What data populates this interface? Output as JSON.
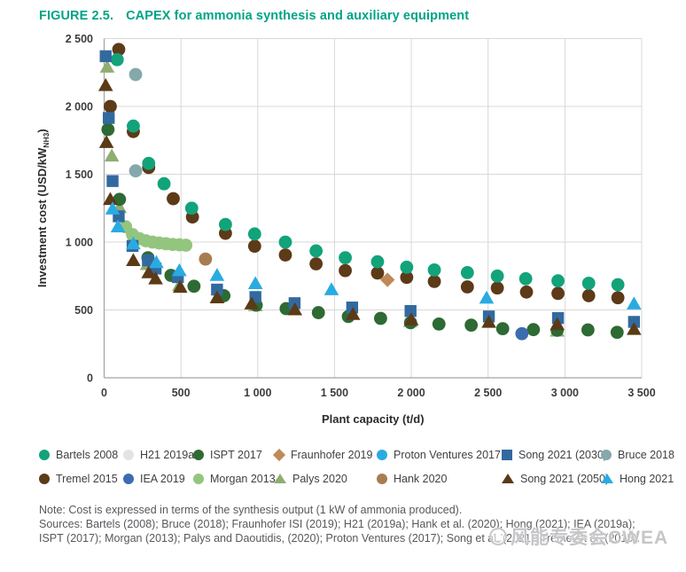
{
  "title": {
    "number": "FIGURE 2.5.",
    "text": "CAPEX for ammonia synthesis and auxiliary equipment",
    "color": "#00a485"
  },
  "chart_data": {
    "type": "scatter",
    "title": "CAPEX for ammonia synthesis and auxiliary equipment",
    "xlabel": "Plant capacity (t/d)",
    "ylabel_prefix": "Investment cost (USD/kW",
    "ylabel_sub": "NH3",
    "ylabel_suffix": ")",
    "xlim": [
      0,
      3500
    ],
    "ylim": [
      0,
      2500
    ],
    "xtick_values": [
      0,
      500,
      1000,
      1500,
      2000,
      2500,
      3000,
      3500
    ],
    "xtick_labels": [
      "0",
      "500",
      "1 000",
      "1 500",
      "2 000",
      "2 500",
      "3 000",
      "3 500"
    ],
    "ytick_values": [
      0,
      500,
      1000,
      1500,
      2000,
      2500
    ],
    "ytick_labels": [
      "0",
      "500",
      "1 000",
      "1 500",
      "2 000",
      "2 500"
    ],
    "grid": true,
    "legend_position": "bottom",
    "grid_color": "#d8d8d8",
    "axis_color": "#a3a3a3",
    "tick_label_color": "#3d3d3f",
    "axis_title_color": "#2b2b2d",
    "series": [
      {
        "name": "Bartels 2008",
        "marker": "circle",
        "color": "#12a37b",
        "points": [
          [
            85,
            2345
          ],
          [
            190,
            1855
          ],
          [
            290,
            1580
          ],
          [
            390,
            1430
          ],
          [
            570,
            1250
          ],
          [
            790,
            1130
          ],
          [
            980,
            1060
          ],
          [
            1180,
            1000
          ],
          [
            1380,
            935
          ],
          [
            1570,
            885
          ],
          [
            1780,
            855
          ],
          [
            1970,
            815
          ],
          [
            2150,
            795
          ],
          [
            2365,
            775
          ],
          [
            2560,
            750
          ],
          [
            2745,
            730
          ],
          [
            2955,
            715
          ],
          [
            3155,
            697
          ],
          [
            3345,
            686
          ]
        ]
      },
      {
        "name": "H21 2019a",
        "marker": "circle",
        "color": "#e3e3e1",
        "points": []
      },
      {
        "name": "ISPT 2017",
        "marker": "circle",
        "color": "#2e6a33",
        "points": [
          [
            25,
            1830
          ],
          [
            100,
            1315
          ],
          [
            285,
            885
          ],
          [
            435,
            755
          ],
          [
            585,
            675
          ],
          [
            780,
            605
          ],
          [
            990,
            535
          ],
          [
            1185,
            510
          ],
          [
            1395,
            480
          ],
          [
            1590,
            452
          ],
          [
            1800,
            438
          ],
          [
            1995,
            406
          ],
          [
            2180,
            396
          ],
          [
            2390,
            388
          ],
          [
            2595,
            362
          ],
          [
            2795,
            355
          ],
          [
            2950,
            350
          ],
          [
            3150,
            353
          ],
          [
            3340,
            335
          ]
        ]
      },
      {
        "name": "Fraunhofer 2019",
        "marker": "diamond",
        "color": "#bf8a57",
        "points": [
          [
            1845,
            722
          ]
        ]
      },
      {
        "name": "Proton Ventures 2017",
        "marker": "circle",
        "color": "#29abe2",
        "points": []
      },
      {
        "name": "Song 2021 (2030)",
        "marker": "square",
        "color": "#32699f",
        "points": [
          [
            10,
            2370
          ],
          [
            30,
            1915
          ],
          [
            55,
            1450
          ],
          [
            95,
            1190
          ],
          [
            185,
            972
          ],
          [
            285,
            865
          ],
          [
            335,
            805
          ],
          [
            480,
            742
          ],
          [
            735,
            650
          ],
          [
            985,
            595
          ],
          [
            1240,
            550
          ],
          [
            1615,
            518
          ],
          [
            1995,
            492
          ],
          [
            2505,
            452
          ],
          [
            2955,
            440
          ],
          [
            3450,
            412
          ]
        ]
      },
      {
        "name": "Bruce 2018",
        "marker": "circle",
        "color": "#85a8ab",
        "points": [
          [
            205,
            2235
          ],
          [
            205,
            1525
          ]
        ]
      },
      {
        "name": "Tremel 2015",
        "marker": "circle",
        "color": "#5d3a18",
        "points": [
          [
            95,
            2420
          ],
          [
            40,
            2000
          ],
          [
            190,
            1815
          ],
          [
            290,
            1550
          ],
          [
            450,
            1320
          ],
          [
            575,
            1185
          ],
          [
            790,
            1065
          ],
          [
            980,
            970
          ],
          [
            1180,
            905
          ],
          [
            1380,
            840
          ],
          [
            1570,
            790
          ],
          [
            1780,
            772
          ],
          [
            1970,
            740
          ],
          [
            2150,
            710
          ],
          [
            2365,
            670
          ],
          [
            2560,
            662
          ],
          [
            2750,
            632
          ],
          [
            2955,
            622
          ],
          [
            3155,
            605
          ],
          [
            3345,
            590
          ]
        ]
      },
      {
        "name": "IEA 2019",
        "marker": "circle",
        "color": "#3c6cb0",
        "points": [
          [
            2720,
            325
          ]
        ]
      },
      {
        "name": "Morgan 2013",
        "marker": "circle",
        "color": "#94c57e",
        "points": [
          [
            140,
            1113
          ],
          [
            185,
            1055
          ],
          [
            230,
            1025
          ],
          [
            272,
            1010
          ],
          [
            315,
            1000
          ],
          [
            358,
            993
          ],
          [
            402,
            988
          ],
          [
            446,
            983
          ],
          [
            490,
            980
          ],
          [
            532,
            977
          ]
        ]
      },
      {
        "name": "Palys 2020",
        "marker": "triangle",
        "color": "#8fae70",
        "points": [
          [
            20,
            2290
          ],
          [
            50,
            1635
          ],
          [
            100,
            1255
          ],
          [
            280,
            835
          ],
          [
            490,
            682
          ],
          [
            985,
            532
          ],
          [
            1995,
            415
          ],
          [
            2950,
            345
          ]
        ]
      },
      {
        "name": "Hank 2020",
        "marker": "circle",
        "color": "#a87c51",
        "points": [
          [
            660,
            875
          ]
        ]
      },
      {
        "name": "Song 2021 (2050)",
        "marker": "triangle",
        "color": "#5b3a16",
        "points": [
          [
            10,
            2155
          ],
          [
            15,
            1735
          ],
          [
            40,
            1315
          ],
          [
            190,
            865
          ],
          [
            290,
            775
          ],
          [
            335,
            730
          ],
          [
            495,
            668
          ],
          [
            735,
            590
          ],
          [
            960,
            545
          ],
          [
            1242,
            502
          ],
          [
            1620,
            468
          ],
          [
            2000,
            428
          ],
          [
            2505,
            410
          ],
          [
            2950,
            393
          ],
          [
            3450,
            357
          ]
        ]
      },
      {
        "name": "Hong 2021",
        "marker": "triangle",
        "color": "#29abe2",
        "points": [
          [
            55,
            1245
          ],
          [
            90,
            1113
          ],
          [
            190,
            988
          ],
          [
            340,
            850
          ],
          [
            490,
            790
          ],
          [
            735,
            755
          ],
          [
            985,
            695
          ],
          [
            1480,
            650
          ],
          [
            2490,
            588
          ],
          [
            3450,
            545
          ]
        ]
      }
    ],
    "draw_order": [
      1,
      4,
      6,
      11,
      3,
      9,
      10,
      7,
      0,
      2,
      8,
      5,
      12,
      13
    ]
  },
  "notes": {
    "note": "Note: Cost is expressed in terms of the synthesis output (1 kW of ammonia produced).",
    "sources_line1": "Sources: Bartels (2008); Bruce (2018); Fraunhofer ISI (2019); H21 (2019a); Hank et al. (2020); Hong (2021); IEA (2019a);",
    "sources_line2": "ISPT (2017); Morgan (2013); Palys and Daoutidis, (2020); Proton Ventures (2017); Song et al. (2021); Tremel et al. (2015)."
  },
  "watermark": {
    "text": "风能专委会CWEA"
  }
}
